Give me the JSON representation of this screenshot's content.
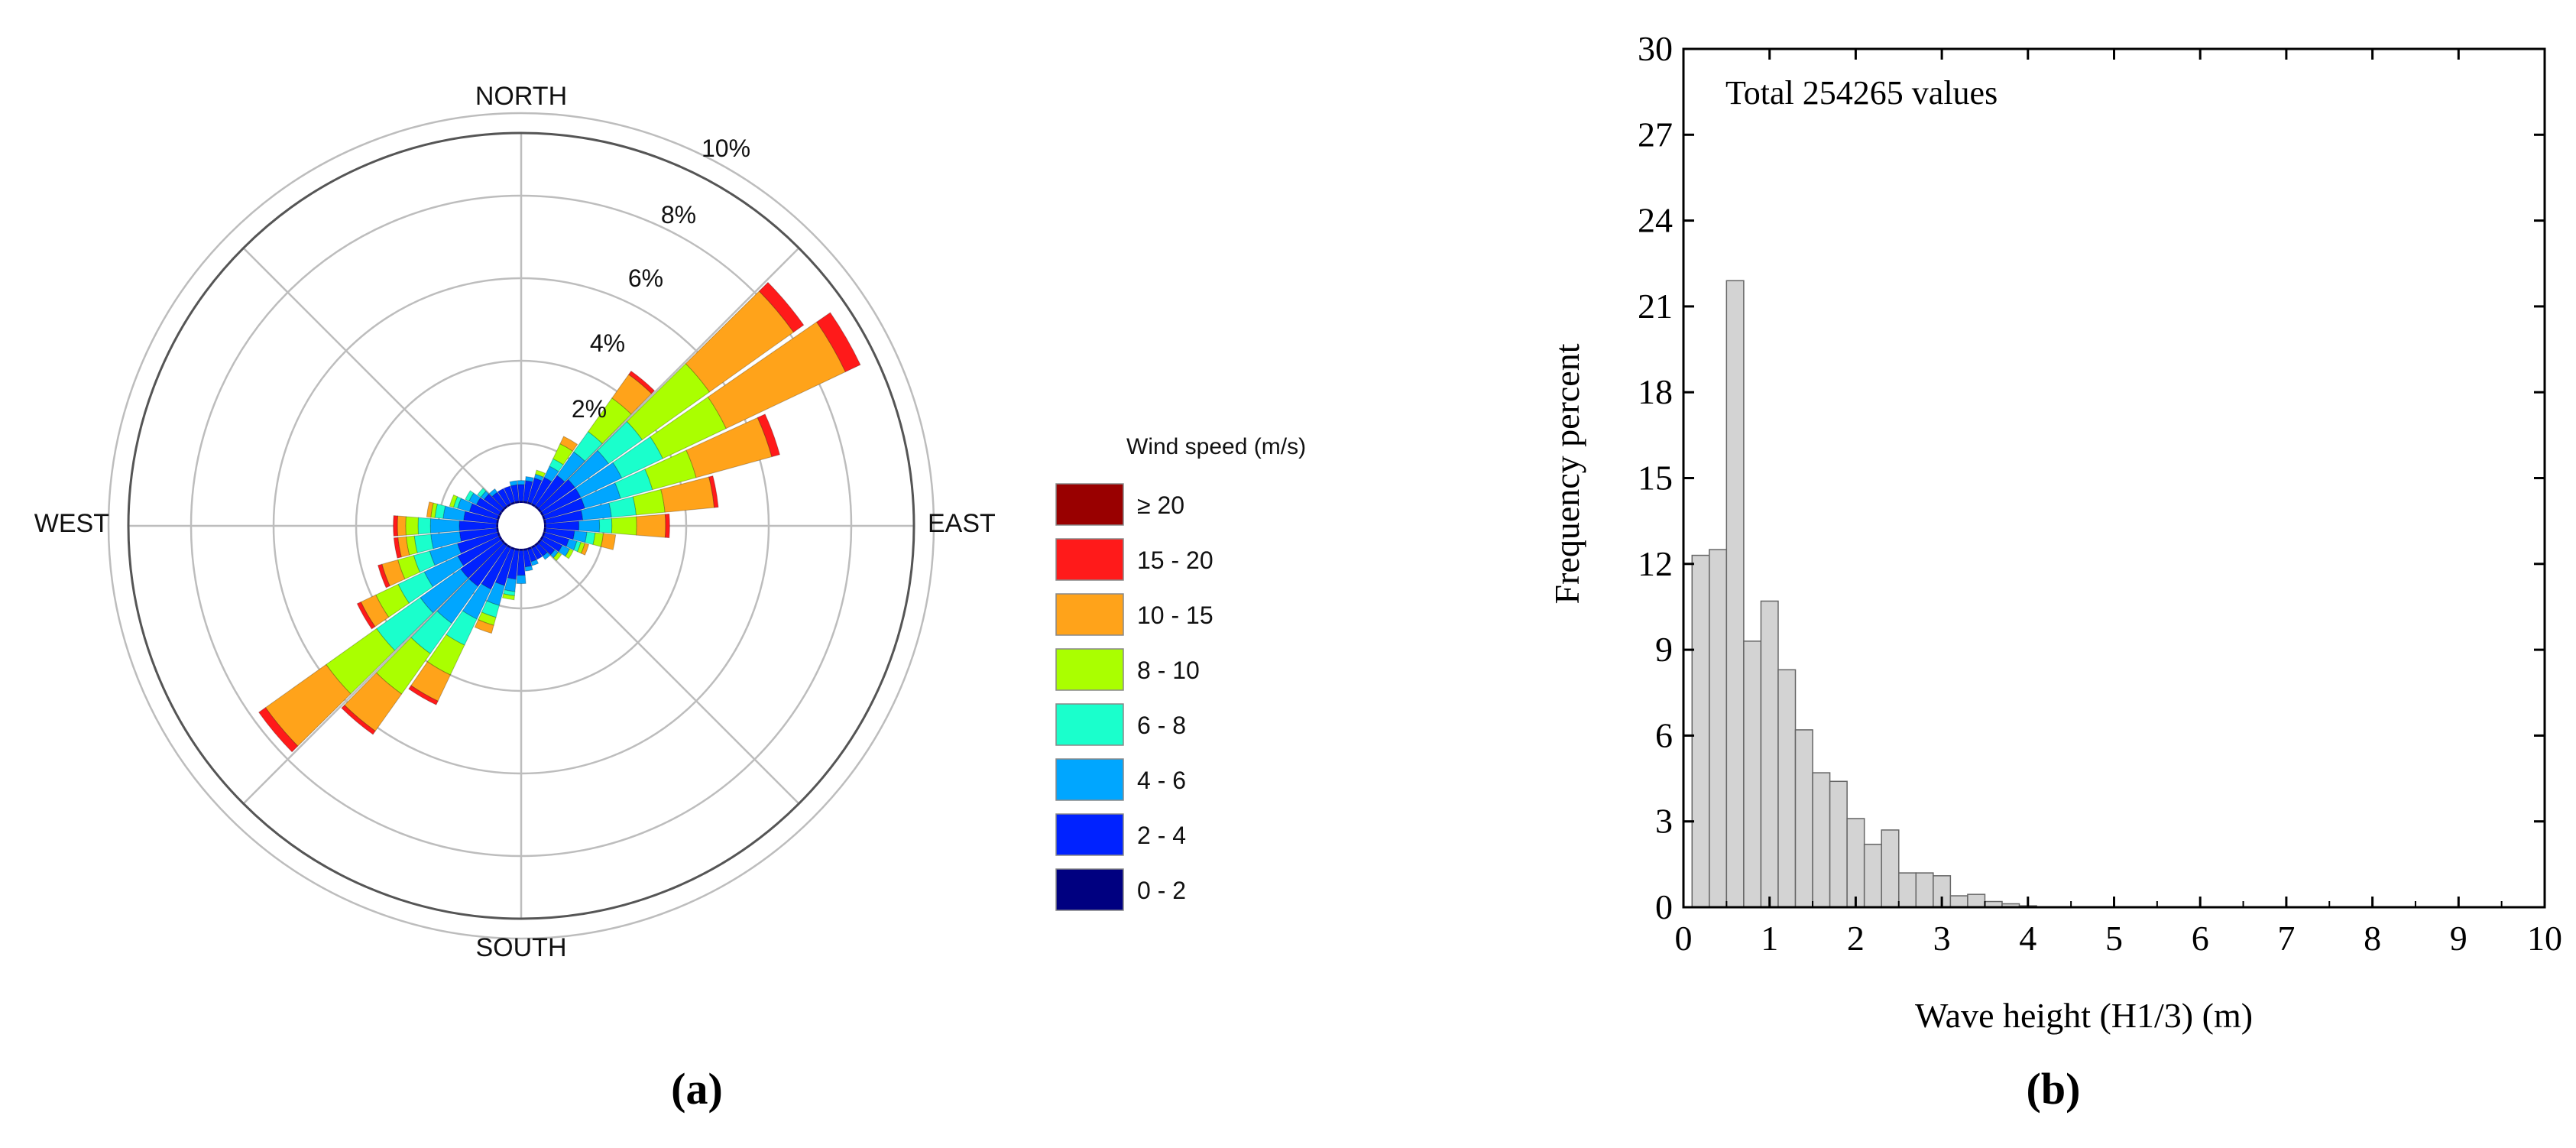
{
  "chart_data": [
    {
      "type": "wind-rose",
      "panel_label": "(a)",
      "directions": [
        "NORTH",
        "EAST",
        "SOUTH",
        "WEST"
      ],
      "radial_ticks": [
        "2%",
        "4%",
        "6%",
        "8%",
        "10%"
      ],
      "radial_max": 10,
      "legend_title": "Wind speed (m/s)",
      "bins": [
        {
          "label": "≥ 20",
          "color": "#990000"
        },
        {
          "label": "15 - 20",
          "color": "#ff1a1a"
        },
        {
          "label": "10 - 15",
          "color": "#ffa31a"
        },
        {
          "label": "8 - 10",
          "color": "#aaff00"
        },
        {
          "label": "6 - 8",
          "color": "#1affcc"
        },
        {
          "label": "4 - 6",
          "color": "#00a6ff"
        },
        {
          "label": "2 - 4",
          "color": "#0022ff"
        },
        {
          "label": "0 - 2",
          "color": "#000080"
        }
      ],
      "sector_count": 36,
      "sectors": [
        {
          "dir": 0,
          "cum": [
            0.6,
            1.0,
            1.1,
            1.1,
            1.1,
            1.1,
            1.1,
            1.1
          ]
        },
        {
          "dir": 10,
          "cum": [
            0.6,
            1.1,
            1.2,
            1.2,
            1.2,
            1.2,
            1.2,
            1.2
          ]
        },
        {
          "dir": 20,
          "cum": [
            0.6,
            1.2,
            1.3,
            1.3,
            1.4,
            1.4,
            1.4,
            1.4
          ]
        },
        {
          "dir": 30,
          "cum": [
            0.6,
            1.3,
            1.6,
            1.8,
            2.2,
            2.4,
            2.4,
            2.4
          ]
        },
        {
          "dir": 40,
          "cum": [
            0.6,
            1.5,
            2.2,
            2.8,
            3.8,
            4.5,
            4.6,
            4.6
          ]
        },
        {
          "dir": 50,
          "cum": [
            0.6,
            1.6,
            2.6,
            3.6,
            5.6,
            8.1,
            8.4,
            8.4
          ]
        },
        {
          "dir": 60,
          "cum": [
            0.6,
            1.6,
            2.7,
            3.8,
            5.5,
            8.7,
            9.1,
            9.1
          ]
        },
        {
          "dir": 70,
          "cum": [
            0.6,
            1.6,
            2.5,
            3.3,
            4.4,
            6.3,
            6.5,
            6.5
          ]
        },
        {
          "dir": 80,
          "cum": [
            0.6,
            1.5,
            2.2,
            2.8,
            3.5,
            4.7,
            4.8,
            4.8
          ]
        },
        {
          "dir": 90,
          "cum": [
            0.6,
            1.4,
            1.9,
            2.2,
            2.8,
            3.5,
            3.6,
            3.6
          ]
        },
        {
          "dir": 100,
          "cum": [
            0.6,
            1.3,
            1.6,
            1.8,
            2.0,
            2.3,
            2.3,
            2.3
          ]
        },
        {
          "dir": 110,
          "cum": [
            0.6,
            1.2,
            1.4,
            1.5,
            1.6,
            1.7,
            1.7,
            1.7
          ]
        },
        {
          "dir": 120,
          "cum": [
            0.6,
            1.1,
            1.3,
            1.3,
            1.4,
            1.4,
            1.4,
            1.4
          ]
        },
        {
          "dir": 130,
          "cum": [
            0.6,
            1.0,
            1.1,
            1.1,
            1.2,
            1.2,
            1.2,
            1.2
          ]
        },
        {
          "dir": 140,
          "cum": [
            0.6,
            0.9,
            1.0,
            1.0,
            1.0,
            1.0,
            1.0,
            1.0
          ]
        },
        {
          "dir": 150,
          "cum": [
            0.6,
            0.9,
            0.9,
            0.9,
            0.9,
            0.9,
            0.9,
            0.9
          ]
        },
        {
          "dir": 160,
          "cum": [
            0.6,
            0.9,
            1.0,
            1.0,
            1.0,
            1.0,
            1.0,
            1.0
          ]
        },
        {
          "dir": 170,
          "cum": [
            0.6,
            1.0,
            1.1,
            1.1,
            1.1,
            1.1,
            1.1,
            1.1
          ]
        },
        {
          "dir": 180,
          "cum": [
            0.6,
            1.2,
            1.4,
            1.4,
            1.4,
            1.4,
            1.4,
            1.4
          ]
        },
        {
          "dir": 190,
          "cum": [
            0.6,
            1.3,
            1.6,
            1.7,
            1.8,
            1.8,
            1.8,
            1.8
          ]
        },
        {
          "dir": 200,
          "cum": [
            0.6,
            1.5,
            2.0,
            2.3,
            2.5,
            2.7,
            2.7,
            2.7
          ]
        },
        {
          "dir": 210,
          "cum": [
            0.6,
            1.7,
            2.5,
            3.2,
            4.0,
            4.7,
            4.8,
            4.8
          ]
        },
        {
          "dir": 220,
          "cum": [
            0.6,
            1.8,
            2.9,
            3.8,
            5.0,
            6.1,
            6.2,
            6.2
          ]
        },
        {
          "dir": 230,
          "cum": [
            0.6,
            1.8,
            3.0,
            4.3,
            5.8,
            7.6,
            7.8,
            7.8
          ]
        },
        {
          "dir": 240,
          "cum": [
            0.6,
            1.7,
            2.6,
            3.3,
            3.9,
            4.3,
            4.4,
            4.4
          ]
        },
        {
          "dir": 250,
          "cum": [
            0.6,
            1.6,
            2.3,
            2.7,
            3.1,
            3.5,
            3.6,
            3.6
          ]
        },
        {
          "dir": 260,
          "cum": [
            0.6,
            1.5,
            2.2,
            2.6,
            2.8,
            3.0,
            3.1,
            3.1
          ]
        },
        {
          "dir": 270,
          "cum": [
            0.6,
            1.5,
            2.2,
            2.5,
            2.8,
            3.0,
            3.1,
            3.1
          ]
        },
        {
          "dir": 280,
          "cum": [
            0.6,
            1.4,
            1.9,
            2.1,
            2.2,
            2.3,
            2.3,
            2.3
          ]
        },
        {
          "dir": 290,
          "cum": [
            0.6,
            1.3,
            1.6,
            1.7,
            1.8,
            1.8,
            1.8,
            1.8
          ]
        },
        {
          "dir": 300,
          "cum": [
            0.6,
            1.2,
            1.4,
            1.5,
            1.5,
            1.5,
            1.5,
            1.5
          ]
        },
        {
          "dir": 310,
          "cum": [
            0.6,
            1.1,
            1.2,
            1.3,
            1.3,
            1.3,
            1.3,
            1.3
          ]
        },
        {
          "dir": 320,
          "cum": [
            0.6,
            1.0,
            1.1,
            1.1,
            1.1,
            1.1,
            1.1,
            1.1
          ]
        },
        {
          "dir": 330,
          "cum": [
            0.6,
            1.0,
            1.0,
            1.0,
            1.0,
            1.0,
            1.0,
            1.0
          ]
        },
        {
          "dir": 340,
          "cum": [
            0.6,
            1.0,
            1.0,
            1.0,
            1.0,
            1.0,
            1.0,
            1.0
          ]
        },
        {
          "dir": 350,
          "cum": [
            0.6,
            1.0,
            1.1,
            1.1,
            1.1,
            1.1,
            1.1,
            1.1
          ]
        }
      ]
    },
    {
      "type": "bar",
      "panel_label": "(b)",
      "annotation": "Total 254265 values",
      "xlabel": "Wave height (H1/3) (m)",
      "ylabel": "Frequency percent",
      "xlim": [
        0,
        10
      ],
      "ylim": [
        0,
        30
      ],
      "xticks": [
        "0",
        "1",
        "2",
        "3",
        "4",
        "5",
        "6",
        "7",
        "8",
        "9",
        "10"
      ],
      "yticks": [
        "0",
        "3",
        "6",
        "9",
        "12",
        "15",
        "18",
        "21",
        "24",
        "27",
        "30"
      ],
      "bin_width": 0.2,
      "bins_start": [
        0.1,
        0.3,
        0.5,
        0.7,
        0.9,
        1.1,
        1.3,
        1.5,
        1.7,
        1.9,
        2.1,
        2.3,
        2.5,
        2.7,
        2.9,
        3.1,
        3.3,
        3.5,
        3.7,
        3.9
      ],
      "values": [
        12.3,
        12.5,
        21.9,
        9.3,
        10.7,
        8.3,
        6.2,
        4.7,
        4.4,
        3.1,
        2.2,
        2.7,
        1.2,
        1.2,
        1.1,
        0.4,
        0.45,
        0.2,
        0.12,
        0.05
      ],
      "bar_color": "#d3d3d3"
    }
  ]
}
